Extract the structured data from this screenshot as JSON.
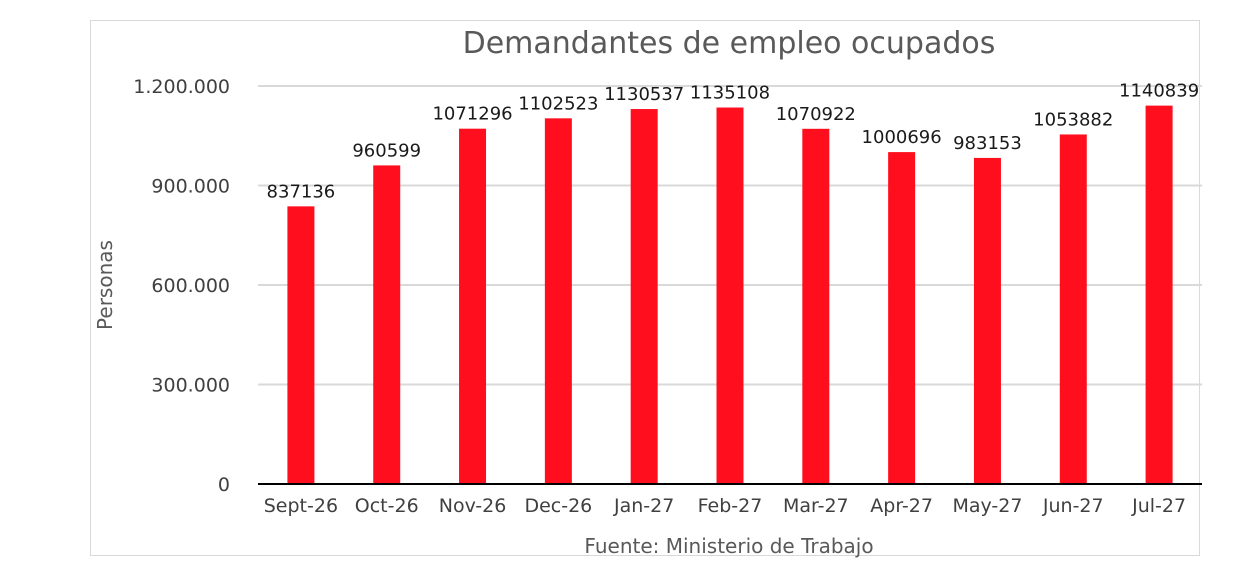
{
  "chart_data": {
    "type": "bar",
    "title": "Demandantes de empleo ocupados",
    "xlabel": "Fuente: Ministerio de Trabajo",
    "ylabel": "Personas",
    "categories": [
      "Sept-26",
      "Oct-26",
      "Nov-26",
      "Dec-26",
      "Jan-27",
      "Feb-27",
      "Mar-27",
      "Apr-27",
      "May-27",
      "Jun-27",
      "Jul-27"
    ],
    "series": [
      {
        "values": [
          837136,
          960599,
          1071296,
          1102523,
          1130537,
          1135108,
          1070922,
          1000696,
          983153,
          1053882,
          1140839
        ]
      }
    ],
    "data_labels": [
      "837136",
      "960599",
      "1071296",
      "1102523",
      "1130537",
      "1135108",
      "1070922",
      "1000696",
      "983153",
      "1053882",
      "1140839"
    ],
    "yticks": [
      0,
      300000,
      600000,
      900000,
      1200000
    ],
    "ytick_labels": [
      "0",
      "300.000",
      "600.000",
      "900.000",
      "1.200.000"
    ],
    "ylim": [
      0,
      1200000
    ],
    "grid": true,
    "legend": "none",
    "bar_color": "#ff0f1e",
    "grid_color": "#d9d9d9",
    "axis_color": "#000000"
  }
}
